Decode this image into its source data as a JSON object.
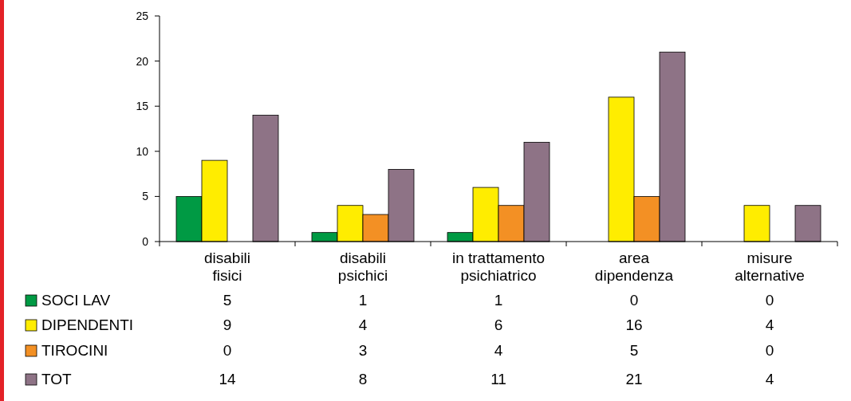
{
  "chart_data": {
    "type": "bar",
    "categories": [
      "disabili\nfisici",
      "disabili\npsichici",
      "in trattamento\npsichiatrico",
      "area\ndipendenza",
      "misure\nalternative"
    ],
    "series": [
      {
        "name": "SOCI LAV",
        "color": "#009a44",
        "values": [
          5,
          1,
          1,
          0,
          0
        ]
      },
      {
        "name": "DIPENDENTI",
        "color": "#ffed00",
        "values": [
          9,
          4,
          6,
          16,
          4
        ]
      },
      {
        "name": "TIROCINI",
        "color": "#f39024",
        "values": [
          0,
          3,
          4,
          5,
          0
        ]
      },
      {
        "name": "TOT",
        "color": "#8e7386",
        "values": [
          14,
          8,
          11,
          21,
          4
        ]
      }
    ],
    "ylim": [
      0,
      25
    ],
    "yticks": [
      0,
      5,
      10,
      15,
      20,
      25
    ],
    "grid": false,
    "legend": "bottom",
    "data_labels": true
  }
}
